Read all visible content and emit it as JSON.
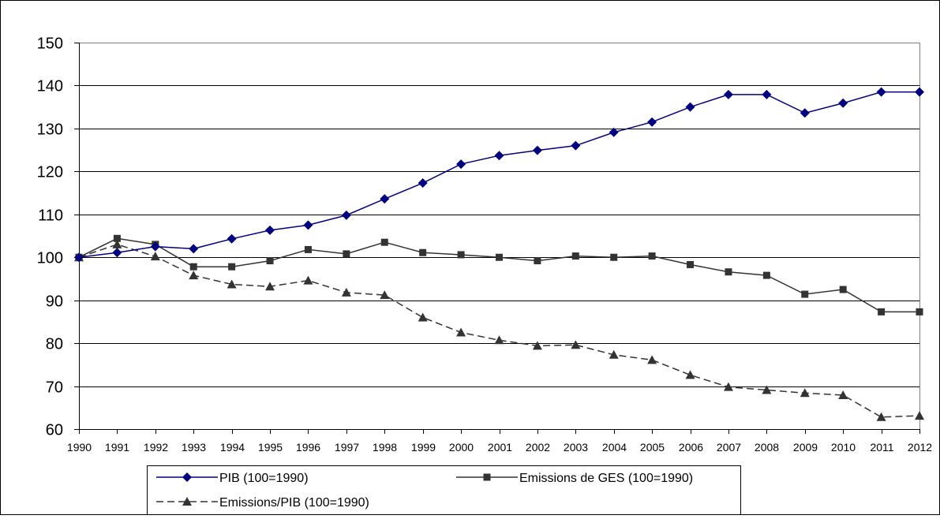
{
  "chart_data": {
    "type": "line",
    "title": "",
    "xlabel": "",
    "ylabel": "",
    "ylim": [
      60,
      150
    ],
    "yticks": [
      60,
      70,
      80,
      90,
      100,
      110,
      120,
      130,
      140,
      150
    ],
    "grid": "horizontal",
    "legend_position": "bottom",
    "categories": [
      "1990",
      "1991",
      "1992",
      "1993",
      "1994",
      "1995",
      "1996",
      "1997",
      "1998",
      "1999",
      "2000",
      "2001",
      "2002",
      "2003",
      "2004",
      "2005",
      "2006",
      "2007",
      "2008",
      "2009",
      "2010",
      "2011",
      "2012"
    ],
    "series": [
      {
        "name": "PIB (100=1990)",
        "color": "#000080",
        "marker": "diamond",
        "dash": "solid",
        "values": [
          100,
          101.1,
          102.5,
          102.0,
          104.3,
          106.3,
          107.5,
          109.8,
          113.6,
          117.3,
          121.7,
          123.7,
          124.9,
          126.0,
          129.1,
          131.5,
          135.0,
          137.9,
          137.9,
          133.6,
          135.9,
          138.5,
          138.5
        ]
      },
      {
        "name": "Emissions de GES (100=1990)",
        "color": "#333333",
        "marker": "square",
        "dash": "solid",
        "values": [
          100,
          104.4,
          103.0,
          97.8,
          97.8,
          99.2,
          101.8,
          100.8,
          103.5,
          101.1,
          100.6,
          100.0,
          99.2,
          100.3,
          100.0,
          100.3,
          98.3,
          96.6,
          95.8,
          91.4,
          92.5,
          87.3,
          87.3
        ]
      },
      {
        "name": "Emissions/PIB (100=1990)",
        "color": "#333333",
        "marker": "triangle",
        "dash": "dashed",
        "values": [
          100,
          103.0,
          100.2,
          95.8,
          93.7,
          93.2,
          94.6,
          91.8,
          91.2,
          86.0,
          82.5,
          80.7,
          79.4,
          79.6,
          77.3,
          76.1,
          72.6,
          69.8,
          69.1,
          68.4,
          67.9,
          62.8,
          63.1
        ]
      }
    ]
  }
}
